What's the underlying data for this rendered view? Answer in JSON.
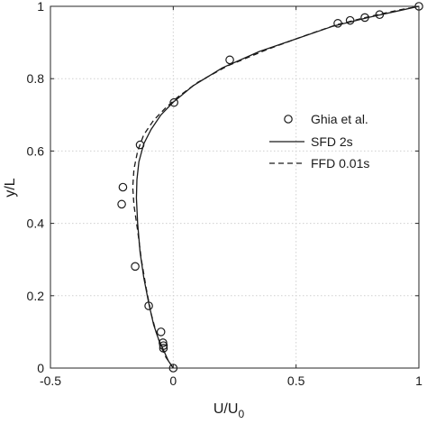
{
  "chart_data": {
    "type": "line",
    "xlabel": "U/U",
    "xlabel_sub": "0",
    "ylabel": "y/L",
    "xlim": [
      -0.5,
      1
    ],
    "ylim": [
      0,
      1
    ],
    "xticks": [
      -0.5,
      0,
      0.5,
      1
    ],
    "xtick_labels": [
      "-0.5",
      "0",
      "0.5",
      "1"
    ],
    "yticks": [
      0,
      0.2,
      0.4,
      0.6,
      0.8,
      1
    ],
    "ytick_labels": [
      "0",
      "0.2",
      "0.4",
      "0.6",
      "0.8",
      "1"
    ],
    "grid": true,
    "legend_position": "right-middle",
    "series": [
      {
        "name": "Ghia et al.",
        "style": "markers-circle",
        "points": [
          [
            0.0,
            0.0
          ],
          [
            -0.04,
            0.055
          ],
          [
            -0.04,
            0.062
          ],
          [
            -0.042,
            0.07
          ],
          [
            -0.05,
            0.1
          ],
          [
            -0.1,
            0.172
          ],
          [
            -0.155,
            0.281
          ],
          [
            -0.21,
            0.453
          ],
          [
            -0.205,
            0.5
          ],
          [
            -0.135,
            0.617
          ],
          [
            0.003,
            0.734
          ],
          [
            0.23,
            0.852
          ],
          [
            0.67,
            0.953
          ],
          [
            0.72,
            0.961
          ],
          [
            0.78,
            0.969
          ],
          [
            0.84,
            0.977
          ],
          [
            1.0,
            1.0
          ]
        ]
      },
      {
        "name": "SFD 2s",
        "style": "solid",
        "points": [
          [
            0.0,
            0.0
          ],
          [
            -0.02,
            0.02
          ],
          [
            -0.04,
            0.05
          ],
          [
            -0.06,
            0.08
          ],
          [
            -0.08,
            0.12
          ],
          [
            -0.1,
            0.18
          ],
          [
            -0.12,
            0.25
          ],
          [
            -0.135,
            0.32
          ],
          [
            -0.145,
            0.4
          ],
          [
            -0.15,
            0.47
          ],
          [
            -0.148,
            0.52
          ],
          [
            -0.14,
            0.57
          ],
          [
            -0.12,
            0.62
          ],
          [
            -0.09,
            0.66
          ],
          [
            -0.05,
            0.7
          ],
          [
            0.0,
            0.735
          ],
          [
            0.08,
            0.78
          ],
          [
            0.2,
            0.83
          ],
          [
            0.35,
            0.875
          ],
          [
            0.5,
            0.91
          ],
          [
            0.65,
            0.945
          ],
          [
            0.8,
            0.97
          ],
          [
            0.92,
            0.988
          ],
          [
            1.0,
            1.0
          ]
        ]
      },
      {
        "name": "FFD 0.01s",
        "style": "dashed",
        "points": [
          [
            0.0,
            0.0
          ],
          [
            -0.03,
            0.03
          ],
          [
            -0.05,
            0.06
          ],
          [
            -0.07,
            0.1
          ],
          [
            -0.09,
            0.15
          ],
          [
            -0.11,
            0.22
          ],
          [
            -0.13,
            0.3
          ],
          [
            -0.145,
            0.38
          ],
          [
            -0.16,
            0.45
          ],
          [
            -0.165,
            0.5
          ],
          [
            -0.16,
            0.55
          ],
          [
            -0.145,
            0.6
          ],
          [
            -0.12,
            0.645
          ],
          [
            -0.08,
            0.685
          ],
          [
            -0.03,
            0.72
          ],
          [
            0.02,
            0.75
          ],
          [
            0.1,
            0.79
          ],
          [
            0.22,
            0.835
          ],
          [
            0.38,
            0.88
          ],
          [
            0.52,
            0.915
          ],
          [
            0.66,
            0.948
          ],
          [
            0.8,
            0.972
          ],
          [
            0.92,
            0.99
          ],
          [
            1.0,
            1.0
          ]
        ]
      }
    ]
  }
}
